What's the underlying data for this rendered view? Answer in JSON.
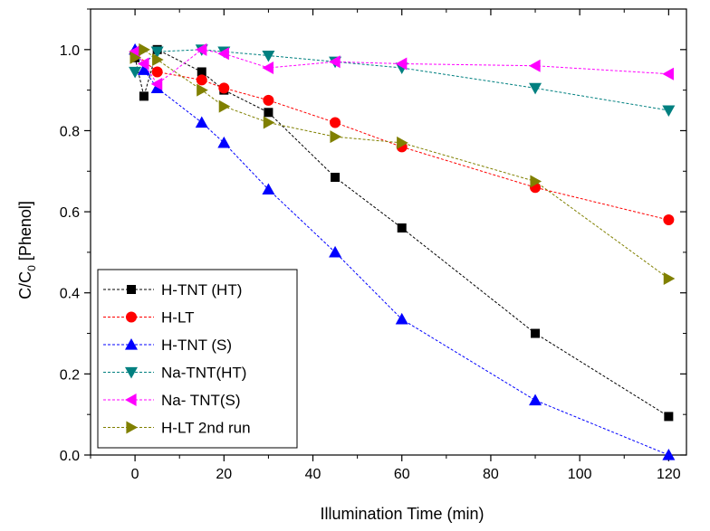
{
  "chart_data": {
    "type": "line",
    "title": "",
    "xlabel": "Illumination Time (min)",
    "ylabel_main": "C/C",
    "ylabel_sub": "0",
    "ylabel_rest": " [Phenol]",
    "xlim": [
      -10,
      124
    ],
    "ylim": [
      0,
      1.1
    ],
    "xticks": [
      0,
      20,
      40,
      60,
      80,
      100,
      120
    ],
    "yticks": [
      0.0,
      0.2,
      0.4,
      0.6,
      0.8,
      1.0
    ],
    "xtick_labels": [
      "0",
      "20",
      "40",
      "60",
      "80",
      "100",
      "120"
    ],
    "ytick_labels": [
      "0.0",
      "0.2",
      "0.4",
      "0.6",
      "0.8",
      "1.0"
    ],
    "grid": false,
    "legend_position": "bottom-left",
    "series": [
      {
        "name": "H-TNT (HT)",
        "marker": "square",
        "color": "#000000",
        "x": [
          0,
          2,
          5,
          15,
          20,
          30,
          45,
          60,
          90,
          120
        ],
        "y": [
          0.98,
          0.885,
          1.0,
          0.945,
          0.9,
          0.845,
          0.685,
          0.56,
          0.3,
          0.095
        ]
      },
      {
        "name": "H-LT",
        "marker": "circle",
        "color": "#ff0000",
        "x": [
          0,
          5,
          15,
          20,
          30,
          45,
          60,
          90,
          120
        ],
        "y": [
          0.99,
          0.945,
          0.925,
          0.905,
          0.875,
          0.82,
          0.76,
          0.66,
          0.58
        ]
      },
      {
        "name": "H-TNT (S)",
        "marker": "triangle-up",
        "color": "#0000ff",
        "x": [
          0,
          2,
          5,
          15,
          20,
          30,
          45,
          60,
          90,
          120
        ],
        "y": [
          1.0,
          0.95,
          0.905,
          0.82,
          0.77,
          0.655,
          0.5,
          0.335,
          0.135,
          0.0
        ]
      },
      {
        "name": "Na-TNT(HT)",
        "marker": "triangle-down",
        "color": "#008080",
        "x": [
          0,
          5,
          15,
          20,
          30,
          45,
          60,
          90,
          120
        ],
        "y": [
          0.945,
          0.995,
          1.0,
          0.995,
          0.985,
          0.97,
          0.955,
          0.905,
          0.85
        ]
      },
      {
        "name": "Na- TNT(S)",
        "marker": "triangle-left",
        "color": "#ff00ff",
        "x": [
          0,
          2,
          5,
          15,
          20,
          30,
          45,
          60,
          90,
          120
        ],
        "y": [
          0.995,
          0.965,
          0.915,
          1.0,
          0.99,
          0.955,
          0.97,
          0.965,
          0.96,
          0.94
        ]
      },
      {
        "name": "H-LT 2nd run",
        "marker": "triangle-right",
        "color": "#808000",
        "x": [
          0,
          2,
          5,
          15,
          20,
          30,
          45,
          60,
          90,
          120
        ],
        "y": [
          0.98,
          1.0,
          0.975,
          0.9,
          0.86,
          0.82,
          0.785,
          0.77,
          0.675,
          0.435
        ]
      }
    ]
  }
}
